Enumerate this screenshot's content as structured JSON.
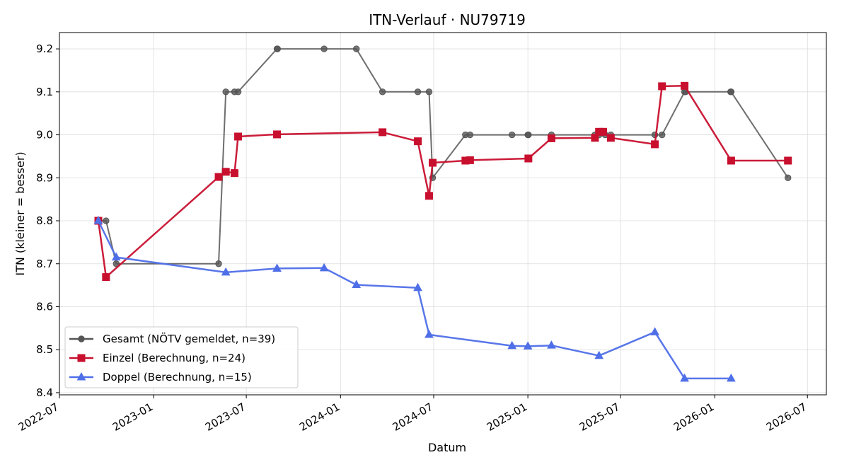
{
  "chart_data": {
    "type": "line",
    "title": "ITN-Verlauf · NU79719",
    "xlabel": "Datum",
    "ylabel": "ITN  (kleiner = besser)",
    "xlim": [
      "2022-07-01",
      "2026-08-07"
    ],
    "ylim": [
      8.395,
      9.238
    ],
    "x_ticks": [
      "2022-07-01",
      "2023-01-01",
      "2023-07-01",
      "2024-01-01",
      "2024-07-01",
      "2025-01-01",
      "2025-07-01",
      "2026-01-01",
      "2026-07-01"
    ],
    "x_tick_labels": [
      "2022-07",
      "2023-01",
      "2023-07",
      "2024-01",
      "2024-07",
      "2025-01",
      "2025-07",
      "2026-01",
      "2026-07"
    ],
    "y_ticks": [
      8.4,
      8.5,
      8.6,
      8.7,
      8.8,
      8.9,
      9.0,
      9.1,
      9.2
    ],
    "y_tick_labels": [
      "8.4",
      "8.5",
      "8.6",
      "8.7",
      "8.8",
      "8.9",
      "9.0",
      "9.1",
      "9.2"
    ],
    "grid": true,
    "legend_position": "lower-left",
    "series": [
      {
        "name": "Gesamt (NÖTV gemeldet, n=39)",
        "color": "#555555",
        "marker": "circle",
        "points": [
          [
            "2022-09-15",
            8.8
          ],
          [
            "2022-09-30",
            8.8
          ],
          [
            "2022-10-20",
            8.7
          ],
          [
            "2023-05-08",
            8.7
          ],
          [
            "2023-05-22",
            9.1
          ],
          [
            "2023-06-08",
            9.1
          ],
          [
            "2023-06-15",
            9.1
          ],
          [
            "2023-08-30",
            9.2
          ],
          [
            "2023-08-31",
            9.2
          ],
          [
            "2023-11-30",
            9.2
          ],
          [
            "2024-02-01",
            9.2
          ],
          [
            "2024-03-23",
            9.1
          ],
          [
            "2024-05-31",
            9.1
          ],
          [
            "2024-06-22",
            9.1
          ],
          [
            "2024-06-29",
            8.9
          ],
          [
            "2024-09-01",
            9.0
          ],
          [
            "2024-09-10",
            9.0
          ],
          [
            "2024-12-01",
            9.0
          ],
          [
            "2025-01-01",
            9.0
          ],
          [
            "2025-01-02",
            9.0
          ],
          [
            "2025-02-16",
            9.0
          ],
          [
            "2025-05-12",
            9.0
          ],
          [
            "2025-05-20",
            9.0
          ],
          [
            "2025-06-01",
            9.0
          ],
          [
            "2025-06-12",
            9.0
          ],
          [
            "2025-09-06",
            9.0
          ],
          [
            "2025-09-20",
            9.0
          ],
          [
            "2025-11-03",
            9.1
          ],
          [
            "2025-11-05",
            9.1
          ],
          [
            "2026-02-01",
            9.1
          ],
          [
            "2026-02-02",
            9.1
          ],
          [
            "2026-05-24",
            8.9
          ]
        ]
      },
      {
        "name": "Einzel (Berechnung, n=24)",
        "color": "#c8102e",
        "marker": "square",
        "points": [
          [
            "2022-09-15",
            8.8
          ],
          [
            "2022-09-30",
            8.669
          ],
          [
            "2023-05-08",
            8.902
          ],
          [
            "2023-05-22",
            8.914
          ],
          [
            "2023-06-08",
            8.911
          ],
          [
            "2023-06-15",
            8.996
          ],
          [
            "2023-08-30",
            9.001
          ],
          [
            "2024-03-23",
            9.006
          ],
          [
            "2024-05-31",
            8.985
          ],
          [
            "2024-06-22",
            8.858
          ],
          [
            "2024-06-29",
            8.935
          ],
          [
            "2024-09-01",
            8.94
          ],
          [
            "2024-09-10",
            8.941
          ],
          [
            "2025-01-02",
            8.945
          ],
          [
            "2025-02-16",
            8.992
          ],
          [
            "2025-05-12",
            8.993
          ],
          [
            "2025-05-20",
            9.007
          ],
          [
            "2025-05-28",
            9.007
          ],
          [
            "2025-06-12",
            8.993
          ],
          [
            "2025-09-06",
            8.978
          ],
          [
            "2025-09-20",
            9.113
          ],
          [
            "2025-11-03",
            9.114
          ],
          [
            "2026-02-02",
            8.94
          ],
          [
            "2026-05-24",
            8.94
          ]
        ]
      },
      {
        "name": "Doppel (Berechnung, n=15)",
        "color": "#4f6fe8",
        "marker": "triangle",
        "points": [
          [
            "2022-09-15",
            8.8
          ],
          [
            "2022-10-20",
            8.715
          ],
          [
            "2023-05-22",
            8.68
          ],
          [
            "2023-08-30",
            8.689
          ],
          [
            "2023-11-30",
            8.69
          ],
          [
            "2024-02-01",
            8.651
          ],
          [
            "2024-05-31",
            8.644
          ],
          [
            "2024-06-22",
            8.535
          ],
          [
            "2024-12-01",
            8.509
          ],
          [
            "2025-01-01",
            8.508
          ],
          [
            "2025-02-16",
            8.51
          ],
          [
            "2025-05-20",
            8.486
          ],
          [
            "2025-09-06",
            8.541
          ],
          [
            "2025-11-03",
            8.433
          ],
          [
            "2026-02-02",
            8.433
          ]
        ]
      }
    ]
  }
}
